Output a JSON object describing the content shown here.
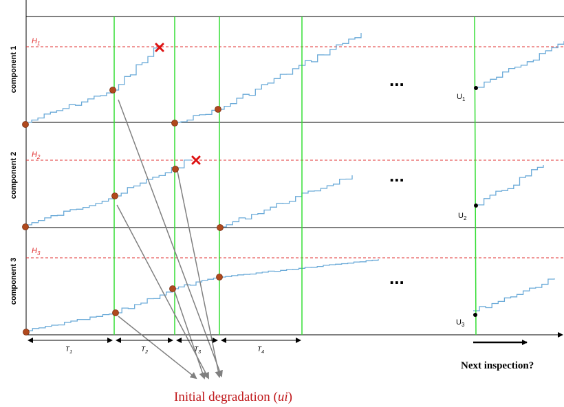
{
  "components": [
    {
      "label": "component 1",
      "threshold": "H",
      "threshold_sub": "1",
      "level": "U",
      "level_sub": "1"
    },
    {
      "label": "component 2",
      "threshold": "H",
      "threshold_sub": "2",
      "level": "U",
      "level_sub": "2"
    },
    {
      "label": "component 3",
      "threshold": "H",
      "threshold_sub": "3",
      "level": "U",
      "level_sub": "3"
    }
  ],
  "intervals": [
    {
      "label": "T",
      "sub": "1"
    },
    {
      "label": "T",
      "sub": "2"
    },
    {
      "label": "T",
      "sub": "3"
    },
    {
      "label": "T",
      "sub": "4"
    }
  ],
  "ellipsis": "...",
  "next_inspection": "Next inspection?",
  "caption": {
    "prefix": "Initial degradation (",
    "var": "ui",
    "suffix": ")"
  },
  "colors": {
    "threshold": "#e03030",
    "inspection_line": "#33dd33",
    "path": "#6aaad8",
    "marker": "#b0491d",
    "failure": "#dd1111",
    "arrow": "#808080",
    "caption": "#c0191c"
  }
}
